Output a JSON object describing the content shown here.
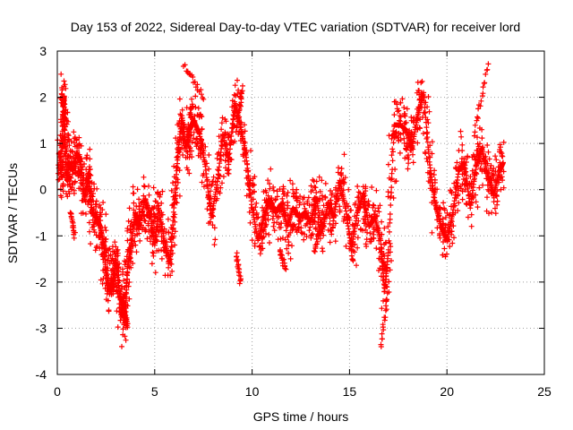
{
  "chart_data": {
    "type": "scatter",
    "title": "Day 153 of 2022, Sidereal Day-to-day VTEC variation (SDTVAR) for receiver lord",
    "xlabel": "GPS time / hours",
    "ylabel": "SDTVAR / TECUs",
    "xlim": [
      0,
      25
    ],
    "ylim": [
      -4,
      3
    ],
    "xticks": [
      0,
      5,
      10,
      15,
      20,
      25
    ],
    "yticks": [
      -4,
      -3,
      -2,
      -1,
      0,
      1,
      2,
      3
    ],
    "xtick_labels": [
      "0",
      "5",
      "10",
      "15",
      "20",
      "25"
    ],
    "ytick_labels": [
      "-4",
      "-3",
      "-2",
      "-1",
      "0",
      "1",
      "2",
      "3"
    ],
    "grid": true,
    "marker": "+",
    "series": [
      {
        "name": "SDTVAR",
        "color": "#ff0000",
        "track_x": [
          0.1,
          0.2,
          0.3,
          0.35,
          0.4,
          0.5,
          0.6,
          0.8,
          1.0,
          1.2,
          1.4,
          1.6,
          1.8,
          2.0,
          2.2,
          2.4,
          2.5,
          2.7,
          2.9,
          3.0,
          3.2,
          3.4,
          3.5,
          3.6,
          3.8,
          4.0,
          4.2,
          4.5,
          4.8,
          5.0,
          5.2,
          5.5,
          5.8,
          6.0,
          6.2,
          6.4,
          6.6,
          6.8,
          7.0,
          7.3,
          7.6,
          7.9,
          8.2,
          8.5,
          8.8,
          9.1,
          9.4,
          9.7,
          10.0,
          10.3,
          10.6,
          10.9,
          11.2,
          11.5,
          11.8,
          12.1,
          12.4,
          12.7,
          13.0,
          13.3,
          13.6,
          13.9,
          14.2,
          14.5,
          14.8,
          15.1,
          15.4,
          15.7,
          16.0,
          16.3,
          16.6,
          16.8,
          17.0,
          17.3,
          17.6,
          17.9,
          18.2,
          18.5,
          18.8,
          19.1,
          19.4,
          19.7,
          20.0,
          20.3,
          20.6,
          20.9,
          21.2,
          21.5,
          21.8,
          22.1,
          22.4,
          22.7,
          22.9
        ],
        "track_y": [
          0.8,
          0.3,
          1.8,
          2.0,
          1.0,
          0.2,
          0.6,
          0.4,
          0.8,
          0.6,
          -0.2,
          0.3,
          -0.5,
          -0.6,
          -0.8,
          -1.2,
          -1.8,
          -2.2,
          -1.9,
          -1.5,
          -2.3,
          -2.5,
          -2.8,
          -1.7,
          -1.2,
          -0.5,
          -0.8,
          -0.2,
          -0.6,
          -1.2,
          -0.4,
          -1.1,
          -1.6,
          -0.3,
          0.8,
          1.6,
          0.9,
          1.3,
          1.5,
          1.2,
          0.5,
          -0.6,
          0.1,
          1.2,
          0.6,
          1.9,
          1.4,
          0.7,
          -0.4,
          -1.1,
          -0.6,
          -0.2,
          -0.5,
          -0.3,
          -0.8,
          -0.4,
          -0.6,
          -0.5,
          -0.7,
          -0.2,
          -0.9,
          -0.3,
          -0.6,
          0.2,
          -0.4,
          -1.3,
          -0.5,
          -0.1,
          -0.8,
          -0.6,
          -1.1,
          -2.2,
          -1.3,
          1.4,
          1.4,
          1.3,
          0.9,
          1.6,
          2.1,
          0.6,
          -0.3,
          -0.8,
          -1.1,
          -0.5,
          0.4,
          0.6,
          -0.4,
          0.5,
          0.9,
          0.3,
          -0.1,
          0.4,
          0.6
        ],
        "clusters": [
          {
            "x": [
              6.5,
              7.5
            ],
            "y": [
              2.7,
              2.0
            ]
          },
          {
            "x": [
              21.4,
              22.1
            ],
            "y": [
              1.2,
              2.7
            ]
          },
          {
            "x": [
              16.6,
              17.0
            ],
            "y": [
              -3.4,
              -2.2
            ]
          },
          {
            "x": [
              9.2,
              9.5
            ],
            "y": [
              1.3,
              2.2
            ]
          },
          {
            "x": [
              13.2,
              13.6
            ],
            "y": [
              -1.3,
              -0.7
            ]
          },
          {
            "x": [
              11.4,
              11.7
            ],
            "y": [
              -1.3,
              -1.7
            ]
          },
          {
            "x": [
              9.2,
              9.4
            ],
            "y": [
              -1.4,
              -2.0
            ]
          },
          {
            "x": [
              3.2,
              3.6
            ],
            "y": [
              -2.6,
              -2.9
            ]
          },
          {
            "x": [
              0.7,
              0.9
            ],
            "y": [
              -0.5,
              -1.0
            ]
          }
        ]
      }
    ]
  }
}
